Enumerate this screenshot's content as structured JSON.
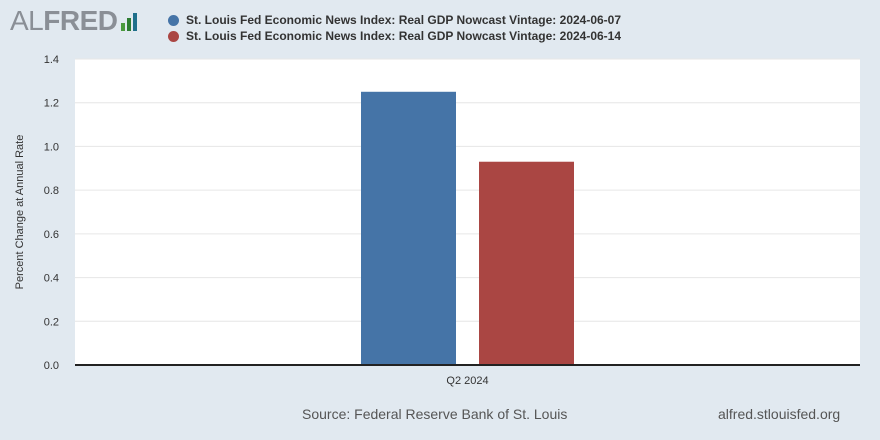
{
  "logo": {
    "text_al": "AL",
    "text_fred": "FRED",
    "icon": "fred-bar-logo-icon",
    "bar_colors": [
      "#4b9a3f",
      "#2e7d32",
      "#1f6f8b"
    ]
  },
  "colors": {
    "series1": "#4574a7",
    "series2": "#aa4643",
    "plot_bg": "#ffffff",
    "page_bg": "#e1e9f0"
  },
  "chart_data": {
    "type": "bar",
    "categories": [
      "Q2 2024"
    ],
    "series": [
      {
        "name": "St. Louis Fed Economic News Index: Real GDP Nowcast Vintage: 2024-06-07",
        "values": [
          1.25
        ]
      },
      {
        "name": "St. Louis Fed Economic News Index: Real GDP Nowcast Vintage: 2024-06-14",
        "values": [
          0.93
        ]
      }
    ],
    "title": "",
    "xlabel": "",
    "ylabel": "Percent Change at Annual Rate",
    "ylim": [
      0,
      1.4
    ],
    "yticks": [
      "0.0",
      "0.2",
      "0.4",
      "0.6",
      "0.8",
      "1.0",
      "1.2",
      "1.4"
    ],
    "grid": true,
    "legend_position": "top"
  },
  "footer": {
    "source": "Source: Federal Reserve Bank of St. Louis",
    "site": "alfred.stlouisfed.org"
  }
}
